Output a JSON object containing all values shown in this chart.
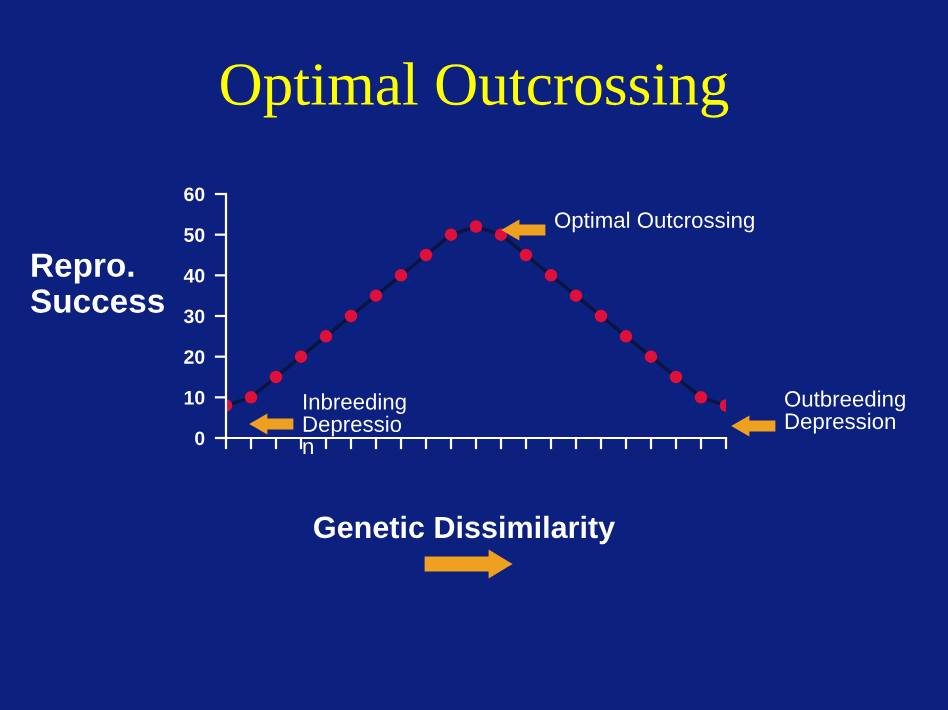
{
  "chart_data": {
    "type": "line",
    "title": "Optimal Outcrossing",
    "xlabel": "Genetic Dissimilarity",
    "ylabel": "Repro.\nSuccess",
    "categories": [
      null,
      null,
      null,
      null,
      null,
      null,
      null,
      null,
      null,
      null,
      null,
      null,
      null,
      null,
      null,
      null,
      null,
      null,
      null,
      null,
      null
    ],
    "series": [
      {
        "color": "#0a1440",
        "values": [
          8,
          10,
          15,
          20,
          25,
          30,
          35,
          40,
          45,
          50,
          52,
          50,
          45,
          40,
          35,
          30,
          25,
          20,
          15,
          10,
          8
        ]
      }
    ],
    "marker": "circle",
    "line_style": "solid",
    "grid": false,
    "ylim": [
      0,
      60
    ],
    "yticks": [
      0,
      10,
      20,
      30,
      40,
      50,
      60
    ],
    "annotations": [
      "Optimal Outcrossing",
      "Inbreeding\nDepressio\nn",
      "Outbreeding\nDepression"
    ]
  }
}
